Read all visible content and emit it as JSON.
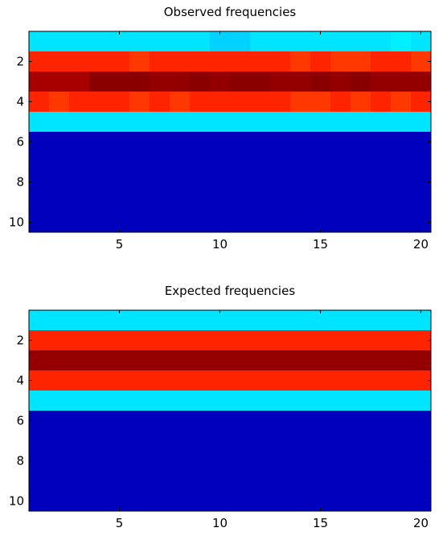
{
  "chart_data": [
    {
      "type": "heatmap",
      "title": "Observed frequencies",
      "xlabel": "",
      "ylabel": "",
      "x": [
        1,
        2,
        3,
        4,
        5,
        6,
        7,
        8,
        9,
        10,
        11,
        12,
        13,
        14,
        15,
        16,
        17,
        18,
        19,
        20
      ],
      "y": [
        1,
        2,
        3,
        4,
        5,
        6,
        7,
        8,
        9,
        10
      ],
      "xlim": [
        0.5,
        20.5
      ],
      "ylim": [
        10.5,
        0.5
      ],
      "xticks": [
        5,
        10,
        15,
        20
      ],
      "yticks": [
        2,
        4,
        6,
        8,
        10
      ],
      "colormap": "jet",
      "vmin": 0,
      "vmax": 1,
      "values": [
        [
          0.35,
          0.35,
          0.35,
          0.35,
          0.35,
          0.35,
          0.35,
          0.35,
          0.35,
          0.33,
          0.33,
          0.35,
          0.35,
          0.35,
          0.35,
          0.35,
          0.35,
          0.35,
          0.36,
          0.35
        ],
        [
          0.84,
          0.84,
          0.84,
          0.84,
          0.84,
          0.82,
          0.84,
          0.84,
          0.84,
          0.84,
          0.84,
          0.84,
          0.84,
          0.82,
          0.84,
          0.82,
          0.82,
          0.84,
          0.84,
          0.82
        ],
        [
          0.96,
          0.96,
          0.96,
          0.99,
          0.99,
          0.99,
          0.98,
          0.98,
          0.99,
          0.98,
          0.99,
          0.99,
          0.98,
          0.98,
          0.99,
          0.98,
          0.99,
          0.98,
          0.98,
          0.98
        ],
        [
          0.84,
          0.82,
          0.84,
          0.84,
          0.84,
          0.82,
          0.84,
          0.82,
          0.84,
          0.84,
          0.84,
          0.84,
          0.84,
          0.82,
          0.82,
          0.84,
          0.82,
          0.84,
          0.82,
          0.84
        ],
        [
          0.35,
          0.35,
          0.35,
          0.35,
          0.35,
          0.35,
          0.35,
          0.35,
          0.35,
          0.35,
          0.35,
          0.35,
          0.35,
          0.35,
          0.35,
          0.35,
          0.35,
          0.35,
          0.35,
          0.35
        ],
        [
          0.06,
          0.06,
          0.06,
          0.06,
          0.06,
          0.06,
          0.06,
          0.06,
          0.06,
          0.06,
          0.06,
          0.06,
          0.06,
          0.06,
          0.06,
          0.06,
          0.06,
          0.06,
          0.06,
          0.06
        ],
        [
          0.06,
          0.06,
          0.06,
          0.06,
          0.06,
          0.06,
          0.06,
          0.06,
          0.06,
          0.06,
          0.06,
          0.06,
          0.06,
          0.06,
          0.06,
          0.06,
          0.06,
          0.06,
          0.06,
          0.06
        ],
        [
          0.06,
          0.06,
          0.06,
          0.06,
          0.06,
          0.06,
          0.06,
          0.06,
          0.06,
          0.06,
          0.06,
          0.06,
          0.06,
          0.06,
          0.06,
          0.06,
          0.06,
          0.06,
          0.06,
          0.06
        ],
        [
          0.06,
          0.06,
          0.06,
          0.06,
          0.06,
          0.06,
          0.06,
          0.06,
          0.06,
          0.06,
          0.06,
          0.06,
          0.06,
          0.06,
          0.06,
          0.06,
          0.06,
          0.06,
          0.06,
          0.06
        ],
        [
          0.06,
          0.06,
          0.06,
          0.06,
          0.06,
          0.06,
          0.06,
          0.06,
          0.06,
          0.06,
          0.06,
          0.06,
          0.06,
          0.06,
          0.06,
          0.06,
          0.06,
          0.06,
          0.06,
          0.06
        ]
      ]
    },
    {
      "type": "heatmap",
      "title": "Expected frequencies",
      "xlabel": "",
      "ylabel": "",
      "x": [
        1,
        2,
        3,
        4,
        5,
        6,
        7,
        8,
        9,
        10,
        11,
        12,
        13,
        14,
        15,
        16,
        17,
        18,
        19,
        20
      ],
      "y": [
        1,
        2,
        3,
        4,
        5,
        6,
        7,
        8,
        9,
        10
      ],
      "xlim": [
        0.5,
        20.5
      ],
      "ylim": [
        10.5,
        0.5
      ],
      "xticks": [
        5,
        10,
        15,
        20
      ],
      "yticks": [
        2,
        4,
        6,
        8,
        10
      ],
      "colormap": "jet",
      "vmin": 0,
      "vmax": 1,
      "row_values": [
        0.35,
        0.84,
        0.98,
        0.84,
        0.35,
        0.06,
        0.06,
        0.06,
        0.06,
        0.06
      ]
    }
  ]
}
